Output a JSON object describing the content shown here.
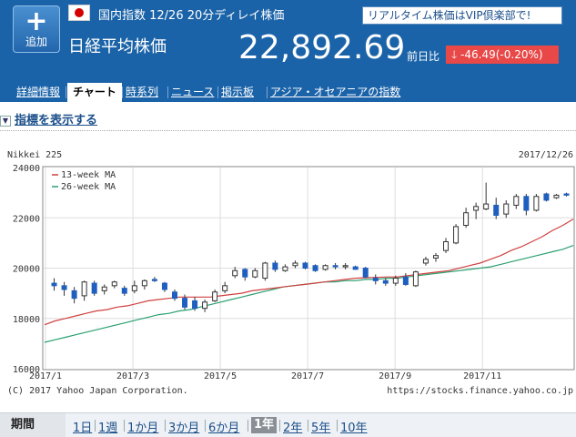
{
  "header": {
    "add_button_label": "追加",
    "subtitle": "国内指数 12/26 20分ディレイ株価",
    "vip_banner": "リアルタイム株価はVIP倶楽部で!",
    "index_name": "日経平均株価",
    "price": "22,892.69",
    "change_label": "前日比",
    "change_value": "-46.49(-0.20%)",
    "change_color": "#e84848",
    "accent_color": "#1b63a8"
  },
  "tabs": [
    "詳細情報",
    "チャート",
    "時系列",
    "ニュース",
    "掲示板",
    "アジア・オセアニアの指数"
  ],
  "active_tab": "チャート",
  "indicator_toggle": "指標を表示する",
  "chart_data": {
    "type": "candlestick",
    "title": "Nikkei 225",
    "date_label": "2017/12/26",
    "ylim": [
      16000,
      24000
    ],
    "yticks": [
      "16000",
      "18000",
      "20000",
      "22000",
      "24000"
    ],
    "xticks": [
      "2017/1",
      "2017/3",
      "2017/5",
      "2017/7",
      "2017/9",
      "2017/11"
    ],
    "legend": [
      "13-week MA",
      "26-week MA"
    ],
    "legend_colors": [
      "#d04040",
      "#2aa070"
    ],
    "candle_up_color": "#ffffff",
    "candle_down_color": "#1f5fbf",
    "grid": true,
    "copyright": "(C) 2017 Yahoo Japan Corporation.",
    "source_url": "https://stocks.finance.yahoo.co.jp",
    "candles": [
      {
        "o": 19400,
        "h": 19600,
        "l": 19100,
        "c": 19300
      },
      {
        "o": 19300,
        "h": 19450,
        "l": 18900,
        "c": 19150
      },
      {
        "o": 19100,
        "h": 19250,
        "l": 18600,
        "c": 18800
      },
      {
        "o": 18900,
        "h": 19500,
        "l": 18700,
        "c": 19450
      },
      {
        "o": 19400,
        "h": 19500,
        "l": 18900,
        "c": 19000
      },
      {
        "o": 19100,
        "h": 19350,
        "l": 18950,
        "c": 19250
      },
      {
        "o": 19300,
        "h": 19500,
        "l": 19200,
        "c": 19450
      },
      {
        "o": 19200,
        "h": 19300,
        "l": 18900,
        "c": 19000
      },
      {
        "o": 19100,
        "h": 19500,
        "l": 19000,
        "c": 19300
      },
      {
        "o": 19300,
        "h": 19550,
        "l": 19150,
        "c": 19500
      },
      {
        "o": 19550,
        "h": 19650,
        "l": 19450,
        "c": 19500
      },
      {
        "o": 19400,
        "h": 19450,
        "l": 19050,
        "c": 19150
      },
      {
        "o": 19050,
        "h": 19150,
        "l": 18700,
        "c": 18800
      },
      {
        "o": 18800,
        "h": 18950,
        "l": 18350,
        "c": 18450
      },
      {
        "o": 18700,
        "h": 18850,
        "l": 18300,
        "c": 18400
      },
      {
        "o": 18400,
        "h": 18750,
        "l": 18250,
        "c": 18650
      },
      {
        "o": 18700,
        "h": 19150,
        "l": 18650,
        "c": 19050
      },
      {
        "o": 19100,
        "h": 19450,
        "l": 19000,
        "c": 19300
      },
      {
        "o": 19700,
        "h": 20050,
        "l": 19600,
        "c": 19900
      },
      {
        "o": 19950,
        "h": 20000,
        "l": 19500,
        "c": 19650
      },
      {
        "o": 19650,
        "h": 20000,
        "l": 19600,
        "c": 19900
      },
      {
        "o": 19600,
        "h": 20250,
        "l": 19500,
        "c": 20200
      },
      {
        "o": 20200,
        "h": 20300,
        "l": 19850,
        "c": 19950
      },
      {
        "o": 19900,
        "h": 20150,
        "l": 19850,
        "c": 20050
      },
      {
        "o": 20100,
        "h": 20300,
        "l": 20000,
        "c": 20200
      },
      {
        "o": 20200,
        "h": 20250,
        "l": 19950,
        "c": 20000
      },
      {
        "o": 20100,
        "h": 20150,
        "l": 19850,
        "c": 19900
      },
      {
        "o": 19950,
        "h": 20150,
        "l": 19900,
        "c": 20100
      },
      {
        "o": 20100,
        "h": 20200,
        "l": 19950,
        "c": 20050
      },
      {
        "o": 20050,
        "h": 20200,
        "l": 19950,
        "c": 20100
      },
      {
        "o": 20050,
        "h": 20100,
        "l": 19950,
        "c": 19950
      },
      {
        "o": 20000,
        "h": 20050,
        "l": 19600,
        "c": 19650
      },
      {
        "o": 19600,
        "h": 19750,
        "l": 19350,
        "c": 19500
      },
      {
        "o": 19500,
        "h": 19600,
        "l": 19300,
        "c": 19400
      },
      {
        "o": 19400,
        "h": 19700,
        "l": 19300,
        "c": 19600
      },
      {
        "o": 19650,
        "h": 19800,
        "l": 19300,
        "c": 19350
      },
      {
        "o": 19300,
        "h": 19900,
        "l": 19250,
        "c": 19850
      },
      {
        "o": 20200,
        "h": 20450,
        "l": 20100,
        "c": 20350
      },
      {
        "o": 20400,
        "h": 20600,
        "l": 20250,
        "c": 20500
      },
      {
        "o": 20700,
        "h": 21200,
        "l": 20600,
        "c": 21050
      },
      {
        "o": 21000,
        "h": 21750,
        "l": 20950,
        "c": 21650
      },
      {
        "o": 21700,
        "h": 22400,
        "l": 21600,
        "c": 22200
      },
      {
        "o": 22300,
        "h": 22600,
        "l": 21950,
        "c": 22450
      },
      {
        "o": 22350,
        "h": 23400,
        "l": 22300,
        "c": 22550
      },
      {
        "o": 22500,
        "h": 22800,
        "l": 21950,
        "c": 22100
      },
      {
        "o": 22150,
        "h": 22700,
        "l": 22000,
        "c": 22550
      },
      {
        "o": 22500,
        "h": 22950,
        "l": 22350,
        "c": 22850
      },
      {
        "o": 22850,
        "h": 22950,
        "l": 22100,
        "c": 22300
      },
      {
        "o": 22300,
        "h": 22950,
        "l": 22250,
        "c": 22850
      },
      {
        "o": 22950,
        "h": 23000,
        "l": 22650,
        "c": 22700
      },
      {
        "o": 22800,
        "h": 22950,
        "l": 22750,
        "c": 22900
      },
      {
        "o": 22950,
        "h": 23000,
        "l": 22850,
        "c": 22900
      }
    ],
    "ma13": [
      17750,
      17900,
      18000,
      18100,
      18200,
      18300,
      18350,
      18450,
      18500,
      18600,
      18700,
      18750,
      18800,
      18850,
      18850,
      18850,
      18850,
      18900,
      18950,
      19000,
      19100,
      19150,
      19200,
      19250,
      19300,
      19350,
      19400,
      19450,
      19500,
      19550,
      19600,
      19620,
      19630,
      19650,
      19650,
      19700,
      19750,
      19800,
      19850,
      19900,
      20000,
      20100,
      20200,
      20350,
      20500,
      20700,
      20850,
      21050,
      21250,
      21500,
      21700,
      21950
    ],
    "ma26": [
      17050,
      17150,
      17250,
      17350,
      17450,
      17550,
      17650,
      17750,
      17850,
      17950,
      18050,
      18150,
      18200,
      18300,
      18350,
      18450,
      18550,
      18650,
      18750,
      18850,
      18950,
      19050,
      19150,
      19250,
      19300,
      19350,
      19400,
      19450,
      19450,
      19500,
      19500,
      19550,
      19550,
      19600,
      19600,
      19650,
      19700,
      19750,
      19800,
      19850,
      19900,
      19950,
      20000,
      20050,
      20150,
      20250,
      20350,
      20450,
      20550,
      20650,
      20750,
      20900
    ]
  },
  "period_bar": {
    "label": "期間",
    "options": [
      "1日",
      "1週",
      "1か月",
      "3か月",
      "6か月",
      "1年",
      "2年",
      "5年",
      "10年"
    ],
    "active": "1年"
  }
}
